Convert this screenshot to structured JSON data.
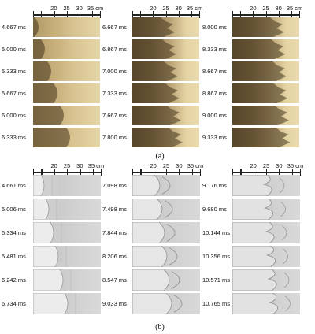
{
  "scale": {
    "ticks": [
      "20",
      "25",
      "30",
      "35 cm"
    ]
  },
  "panel_a": {
    "caption": "(a)",
    "columns": [
      {
        "times": [
          "4.667 ms",
          "5.000 ms",
          "5.333 ms",
          "5.667 ms",
          "6.000 ms",
          "6.333 ms"
        ]
      },
      {
        "times": [
          "6.667 ms",
          "6.867 ms",
          "7.000 ms",
          "7.333 ms",
          "7.667 ms",
          "7.800 ms"
        ]
      },
      {
        "times": [
          "8.000 ms",
          "8.333 ms",
          "8.667 ms",
          "8.867 ms",
          "9.000 ms",
          "9.333 ms"
        ]
      }
    ]
  },
  "panel_b": {
    "caption": "(b)",
    "columns": [
      {
        "times": [
          "4.661 ms",
          "5.006 ms",
          "5.334 ms",
          "5.481 ms",
          "6.242 ms",
          "6.734 ms"
        ]
      },
      {
        "times": [
          "7.098 ms",
          "7.498 ms",
          "7.844 ms",
          "8.206 ms",
          "8.547 ms",
          "9.033 ms"
        ]
      },
      {
        "times": [
          "9.176 ms",
          "9.680 ms",
          "10.144 ms",
          "10.356 ms",
          "10.571 ms",
          "10.765 ms"
        ]
      }
    ]
  },
  "colors": {
    "experiment_gas": "#e6d6a6",
    "experiment_bubble": "#6e5a3a",
    "simulation_background": "#d4d4d4"
  }
}
